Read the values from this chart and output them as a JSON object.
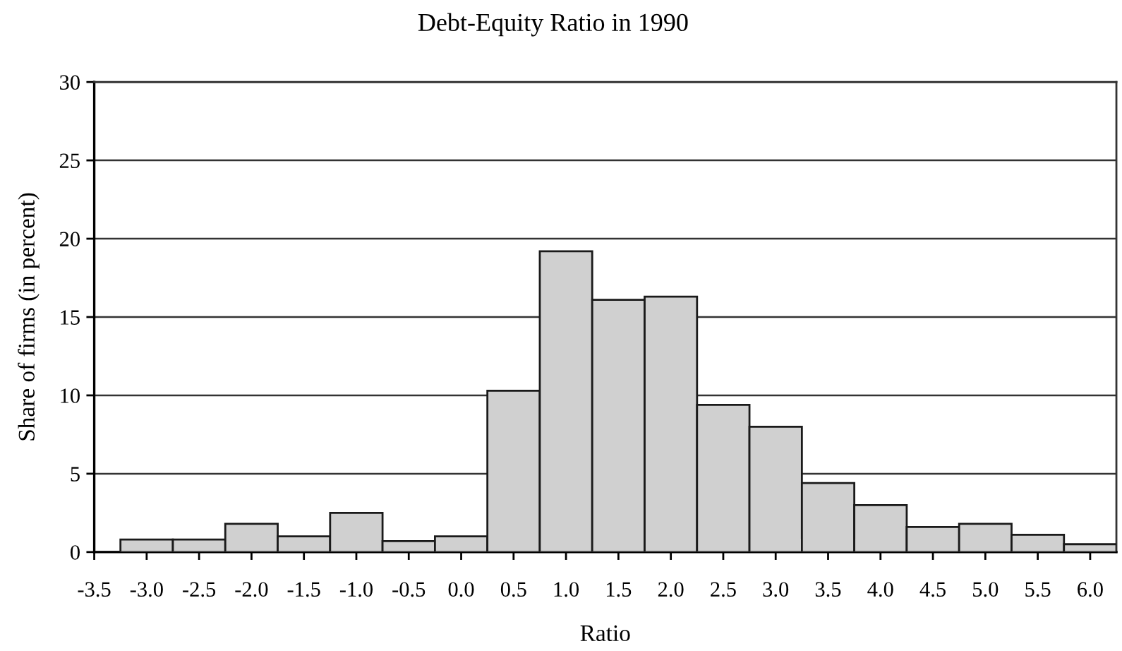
{
  "chart_data": {
    "type": "histogram",
    "title": "Debt-Equity Ratio in 1990",
    "xlabel": "Ratio",
    "ylabel": "Share of firms (in percent)",
    "bins": [
      -3.25,
      -2.75,
      -2.25,
      -1.75,
      -1.25,
      -0.75,
      -0.25,
      0.25,
      0.75,
      1.25,
      1.75,
      2.25,
      2.75,
      3.25,
      3.75,
      4.25,
      4.75,
      5.25,
      5.75,
      6.25
    ],
    "values": [
      0.8,
      0.8,
      1.8,
      1.0,
      2.5,
      0.7,
      1.0,
      10.3,
      19.2,
      16.1,
      16.3,
      9.4,
      8.0,
      4.4,
      3.0,
      1.6,
      1.8,
      1.1,
      0.5
    ],
    "color": "#d0d0d0",
    "xlim": [
      -3.5,
      6.25
    ],
    "xticks": [
      {
        "value": -3.5,
        "label": "-3.5"
      },
      {
        "value": -3,
        "label": "-3.0"
      },
      {
        "value": -2.5,
        "label": "-2.5"
      },
      {
        "value": -2,
        "label": "-2.0"
      },
      {
        "value": -1.5,
        "label": "-1.5"
      },
      {
        "value": -1,
        "label": "-1.0"
      },
      {
        "value": -0.5,
        "label": "-0.5"
      },
      {
        "value": 0,
        "label": "0.0"
      },
      {
        "value": 0.5,
        "label": "0.5"
      },
      {
        "value": 1,
        "label": "1.0"
      },
      {
        "value": 1.5,
        "label": "1.5"
      },
      {
        "value": 2,
        "label": "2.0"
      },
      {
        "value": 2.5,
        "label": "2.5"
      },
      {
        "value": 3,
        "label": "3.0"
      },
      {
        "value": 3.5,
        "label": "3.5"
      },
      {
        "value": 4,
        "label": "4.0"
      },
      {
        "value": 4.5,
        "label": "4.5"
      },
      {
        "value": 5,
        "label": "5.0"
      },
      {
        "value": 5.5,
        "label": "5.5"
      },
      {
        "value": 6,
        "label": "6.0"
      }
    ],
    "ylim": [
      0,
      30
    ],
    "yticks": [
      0,
      5,
      10,
      15,
      20,
      25,
      30
    ],
    "grid": "y",
    "legend": false
  }
}
